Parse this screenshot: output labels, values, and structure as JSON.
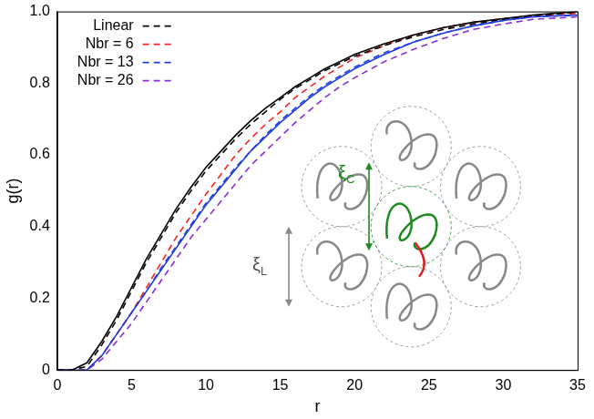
{
  "chart_data": {
    "type": "line",
    "x_label": "r",
    "y_label": "g(r)",
    "x": [
      0,
      1,
      2,
      3,
      4,
      5,
      6,
      7,
      8,
      9,
      10,
      11,
      12,
      13,
      14,
      15,
      16,
      17,
      18,
      19,
      20,
      22,
      24,
      26,
      28,
      30,
      32,
      35
    ],
    "series": [
      {
        "color": "#000000",
        "line_style": "solid",
        "values": [
          0,
          0,
          0.02,
          0.08,
          0.15,
          0.23,
          0.31,
          0.38,
          0.45,
          0.51,
          0.565,
          0.61,
          0.655,
          0.695,
          0.73,
          0.76,
          0.79,
          0.815,
          0.84,
          0.86,
          0.88,
          0.91,
          0.935,
          0.955,
          0.97,
          0.98,
          0.99,
          1.0
        ]
      },
      {
        "color": "#1f3fe0",
        "line_style": "solid",
        "values": [
          0,
          0,
          0,
          0.04,
          0.1,
          0.16,
          0.22,
          0.28,
          0.34,
          0.4,
          0.46,
          0.51,
          0.56,
          0.61,
          0.65,
          0.69,
          0.725,
          0.76,
          0.79,
          0.815,
          0.84,
          0.88,
          0.915,
          0.94,
          0.96,
          0.975,
          0.985,
          0.99
        ]
      },
      {
        "name": "Linear",
        "color": "#000000",
        "line_style": "dashed",
        "values": [
          0,
          0,
          0.01,
          0.07,
          0.14,
          0.22,
          0.3,
          0.37,
          0.44,
          0.5,
          0.555,
          0.6,
          0.645,
          0.685,
          0.72,
          0.755,
          0.785,
          0.81,
          0.835,
          0.855,
          0.875,
          0.905,
          0.93,
          0.95,
          0.965,
          0.978,
          0.988,
          0.998
        ]
      },
      {
        "name": "Nbr = 6",
        "color": "#ff2020",
        "line_style": "dashed",
        "values": [
          0,
          0,
          0,
          0.04,
          0.1,
          0.16,
          0.23,
          0.3,
          0.37,
          0.43,
          0.49,
          0.545,
          0.6,
          0.645,
          0.685,
          0.72,
          0.76,
          0.79,
          0.82,
          0.845,
          0.87,
          0.905,
          0.935,
          0.955,
          0.97,
          0.98,
          0.988,
          0.995
        ]
      },
      {
        "name": "Nbr = 13",
        "color": "#1f3fe0",
        "line_style": "dashed",
        "values": [
          0,
          0,
          0,
          0.04,
          0.1,
          0.16,
          0.22,
          0.285,
          0.345,
          0.405,
          0.465,
          0.515,
          0.565,
          0.61,
          0.655,
          0.695,
          0.73,
          0.765,
          0.795,
          0.82,
          0.845,
          0.885,
          0.915,
          0.94,
          0.96,
          0.975,
          0.985,
          0.99
        ]
      },
      {
        "name": "Nbr = 26",
        "color": "#8a2be2",
        "line_style": "dashed",
        "values": [
          0,
          0,
          0,
          0.03,
          0.08,
          0.13,
          0.19,
          0.25,
          0.31,
          0.37,
          0.42,
          0.47,
          0.52,
          0.57,
          0.61,
          0.65,
          0.69,
          0.725,
          0.76,
          0.79,
          0.815,
          0.86,
          0.895,
          0.925,
          0.95,
          0.965,
          0.978,
          0.985
        ]
      }
    ],
    "xlim": [
      0,
      35
    ],
    "xticks": [
      0,
      5,
      10,
      15,
      20,
      25,
      30,
      35
    ],
    "ylim": [
      0,
      1
    ],
    "yticks": [
      0,
      0.2,
      0.4,
      0.6,
      0.8,
      {
        "value": 1,
        "label": "1.0"
      }
    ],
    "grid": false,
    "legend": "upper left",
    "annotations": [
      "ξC",
      "ξL"
    ]
  }
}
